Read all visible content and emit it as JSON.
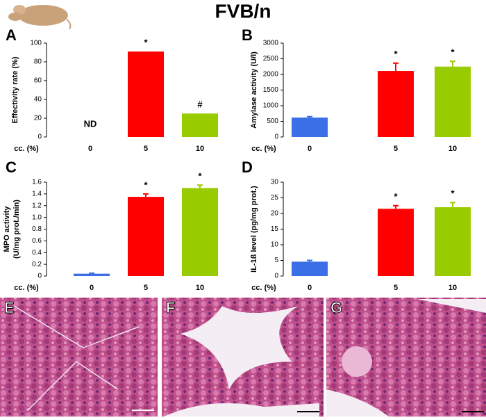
{
  "title": "FVB/n",
  "image_panels": [
    "E",
    "F",
    "G"
  ],
  "chart_data": [
    {
      "type": "bar",
      "label": "A",
      "y_label": [
        "Effectivity rate (%)"
      ],
      "x_label": "cc. (%)",
      "categories": [
        "0",
        "5",
        "10"
      ],
      "values": [
        null,
        91,
        25
      ],
      "errors": [
        null,
        null,
        null
      ],
      "colors": [
        "#3a6fe8",
        "#ff0000",
        "#99cc00"
      ],
      "annotations": [
        "ND",
        "*",
        "#"
      ],
      "ylim": [
        0,
        100
      ],
      "yticks": [
        0,
        20,
        40,
        60,
        80,
        100
      ]
    },
    {
      "type": "bar",
      "label": "B",
      "y_label": [
        "Amylase activity (U/l)"
      ],
      "x_label": "cc. (%)",
      "categories": [
        "0",
        "5",
        "10"
      ],
      "values": [
        620,
        2110,
        2250
      ],
      "errors": [
        30,
        250,
        170
      ],
      "colors": [
        "#3a6fe8",
        "#ff0000",
        "#99cc00"
      ],
      "annotations": [
        null,
        "*",
        "*"
      ],
      "ylim": [
        0,
        3000
      ],
      "yticks": [
        0,
        500,
        1000,
        1500,
        2000,
        2500,
        3000
      ]
    },
    {
      "type": "bar",
      "label": "C",
      "y_label": [
        "MPO activity",
        "(U/mg prot./min)"
      ],
      "x_label": "cc. (%)",
      "categories": [
        "0",
        "5",
        "10"
      ],
      "values": [
        0.04,
        1.35,
        1.5
      ],
      "errors": [
        0.01,
        0.05,
        0.05
      ],
      "colors": [
        "#3a6fe8",
        "#ff0000",
        "#99cc00"
      ],
      "annotations": [
        null,
        "*",
        "*"
      ],
      "ylim": [
        0,
        1.6
      ],
      "yticks": [
        0,
        0.2,
        0.4,
        0.6,
        0.8,
        {
          "value": 1,
          "label": "1.0"
        },
        1.2,
        1.4,
        1.6
      ]
    },
    {
      "type": "bar",
      "label": "D",
      "y_label": [
        "IL-1ß level (pg/mg prot.)"
      ],
      "x_label": "cc. (%)",
      "categories": [
        "0",
        "5",
        "10"
      ],
      "values": [
        4.6,
        21.5,
        22
      ],
      "errors": [
        0.4,
        1.0,
        1.5
      ],
      "colors": [
        "#3a6fe8",
        "#ff0000",
        "#99cc00"
      ],
      "annotations": [
        null,
        "*",
        "*"
      ],
      "ylim": [
        0,
        30
      ],
      "yticks": [
        0,
        5,
        10,
        15,
        20,
        25,
        30
      ]
    }
  ]
}
